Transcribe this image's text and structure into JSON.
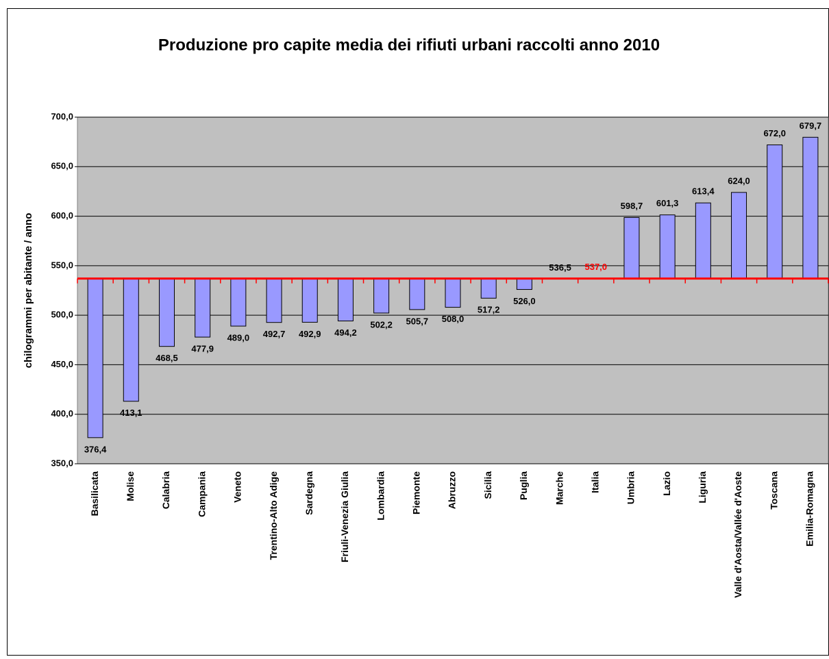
{
  "chart_data": {
    "type": "bar",
    "title": "Produzione pro capite media dei rifiuti urbani raccolti anno 2010",
    "y_label": "chilogrammi per abitante / anno",
    "categories": [
      "Basilicata",
      "Molise",
      "Calabria",
      "Campania",
      "Veneto",
      "Trentino-Alto Adige",
      "Sardegna",
      "Friuli-Venezia Giulia",
      "Lombardia",
      "Piemonte",
      "Abruzzo",
      "Sicilia",
      "Puglia",
      "Marche",
      "Italia",
      "Umbria",
      "Lazio",
      "Liguria",
      "Valle d'Aosta/Vallée d'Aoste",
      "Toscana",
      "Emilia-Romagna"
    ],
    "values": [
      376.4,
      413.1,
      468.5,
      477.9,
      489.0,
      492.7,
      492.9,
      494.2,
      502.2,
      505.7,
      508.0,
      517.2,
      526.0,
      536.5,
      537.0,
      598.7,
      601.3,
      613.4,
      624.0,
      672.0,
      679.7
    ],
    "value_labels": [
      "376,4",
      "413,1",
      "468,5",
      "477,9",
      "489,0",
      "492,7",
      "492,9",
      "494,2",
      "502,2",
      "505,7",
      "508,0",
      "517,2",
      "526,0",
      "536,5",
      "537,0",
      "598,7",
      "601,3",
      "613,4",
      "624,0",
      "672,0",
      "679,7"
    ],
    "reference_category": "Italia",
    "reference_color": "#ff0000",
    "color": "#9999ff",
    "ylim": [
      350,
      700
    ],
    "yticks": [
      {
        "value": 350,
        "label": "350,0"
      },
      {
        "value": 400,
        "label": "400,0"
      },
      {
        "value": 450,
        "label": "450,0"
      },
      {
        "value": 500,
        "label": "500,0"
      },
      {
        "value": 550,
        "label": "550,0"
      },
      {
        "value": 600,
        "label": "600,0"
      },
      {
        "value": 650,
        "label": "650,0"
      },
      {
        "value": 700,
        "label": "700,0"
      }
    ],
    "grid": true
  }
}
